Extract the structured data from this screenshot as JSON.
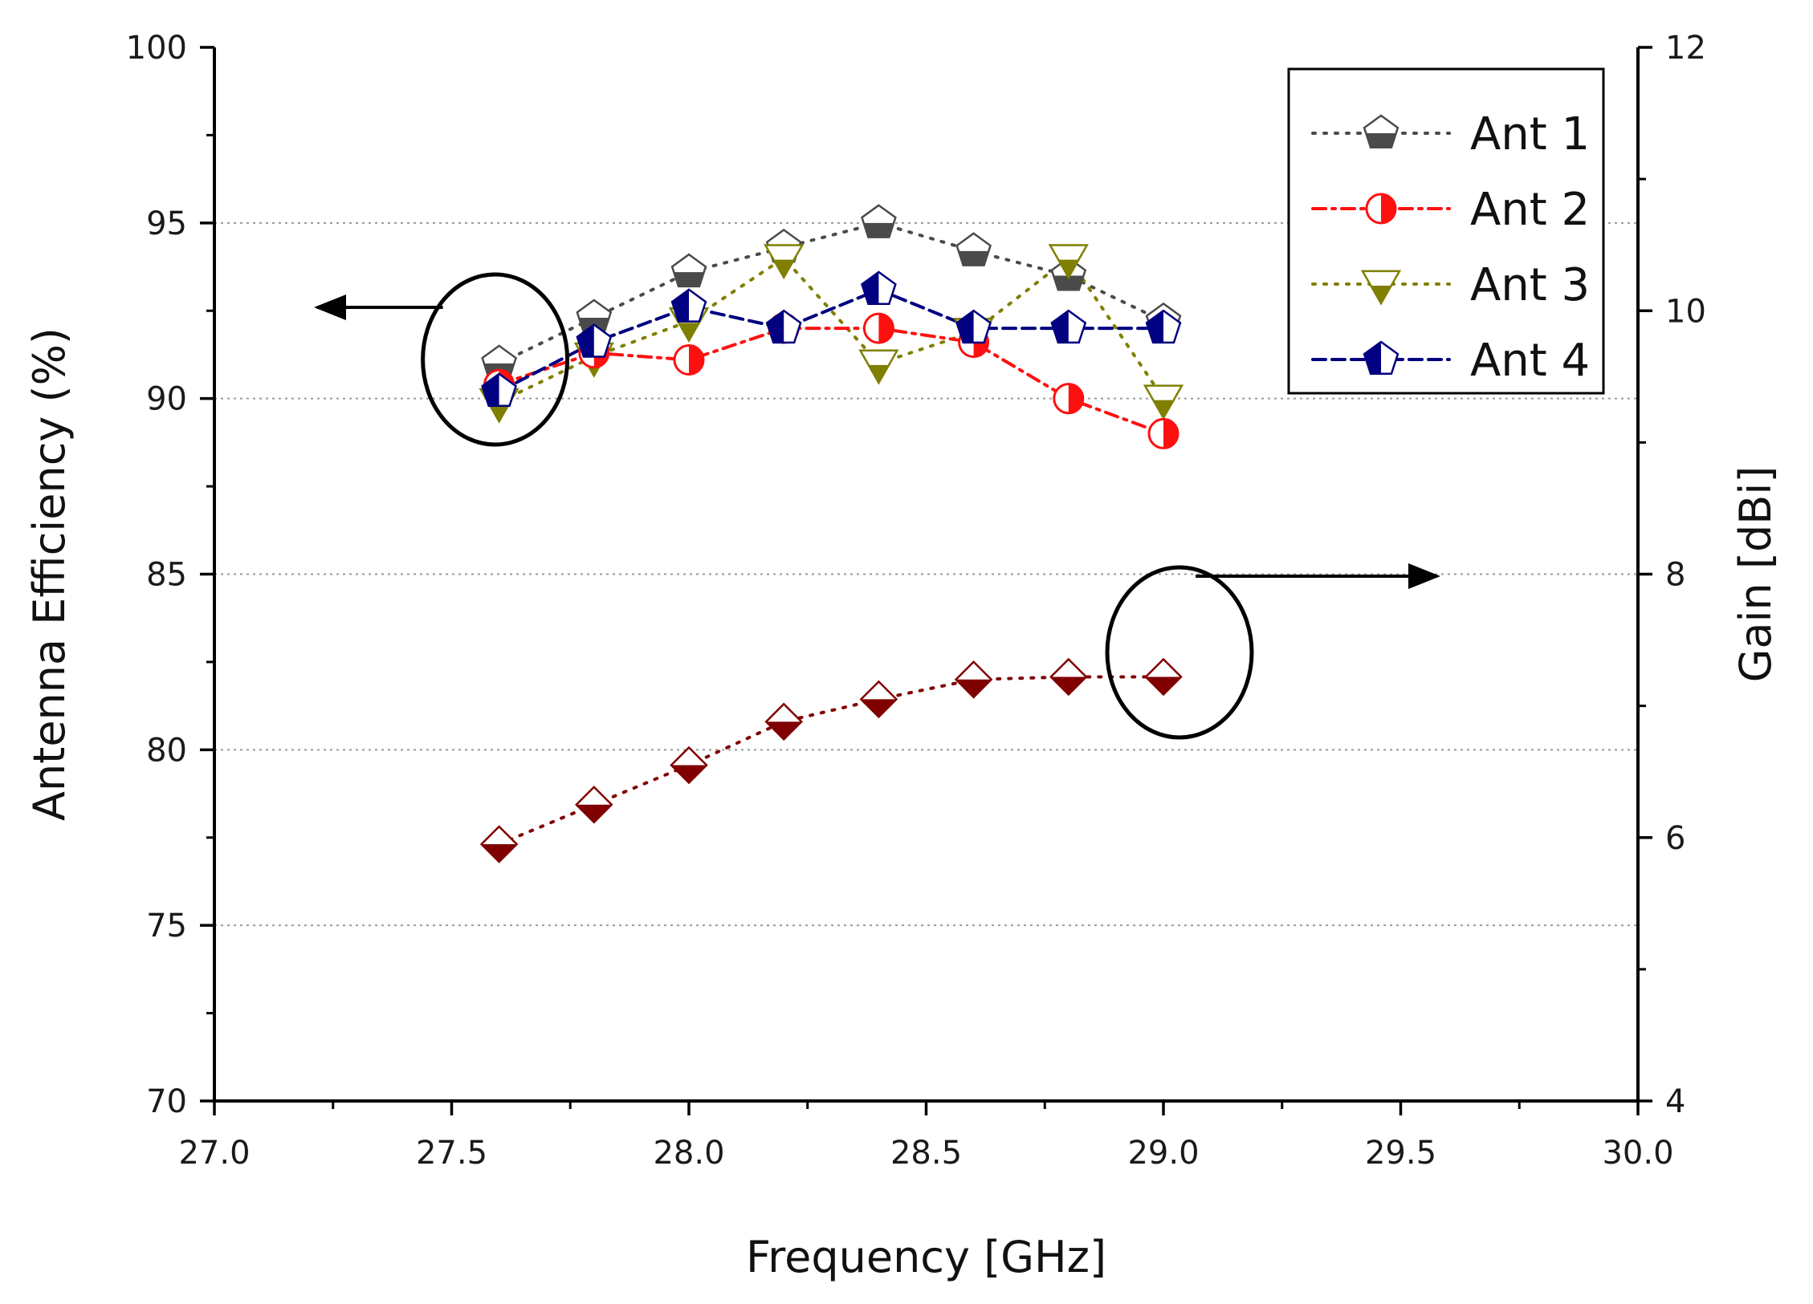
{
  "chart_data": {
    "type": "line",
    "title": "",
    "xlabel": "Frequency [GHz]",
    "ylabel": "Antenna Efficiency (%)",
    "y2label": "Gain [dBi]",
    "xlim": [
      27.0,
      30.0
    ],
    "ylim": [
      70,
      100
    ],
    "y2lim": [
      4,
      12
    ],
    "x_ticks": [
      "27.0",
      "27.5",
      "28.0",
      "28.5",
      "29.0",
      "29.5",
      "30.0"
    ],
    "y_ticks": [
      "70",
      "75",
      "80",
      "85",
      "90",
      "95",
      "100"
    ],
    "y2_ticks": [
      "4",
      "6",
      "8",
      "10",
      "12"
    ],
    "grid": "horizontal dotted at left-axis major ticks",
    "legend_position": "top-right",
    "x": [
      27.6,
      27.8,
      28.0,
      28.2,
      28.4,
      28.6,
      28.8,
      29.0
    ],
    "series": [
      {
        "name": "Ant 1",
        "axis": "left",
        "color": "#4a4a4a",
        "dash": "dotted",
        "marker": "pentagon-half",
        "values": [
          91.0,
          92.3,
          93.6,
          94.3,
          95.0,
          94.2,
          93.5,
          92.2
        ]
      },
      {
        "name": "Ant 2",
        "axis": "left",
        "color": "#ff1010",
        "dash": "dashdot",
        "marker": "circle-half",
        "values": [
          90.4,
          91.3,
          91.1,
          92.0,
          92.0,
          91.6,
          90.0,
          89.0
        ]
      },
      {
        "name": "Ant 3",
        "axis": "left",
        "color": "#7f7f00",
        "dash": "dotted",
        "marker": "triangle-down-half",
        "values": [
          89.9,
          91.2,
          92.2,
          94.0,
          91.0,
          91.9,
          94.0,
          90.0
        ]
      },
      {
        "name": "Ant 4",
        "axis": "left",
        "color": "#000080",
        "dash": "dashed",
        "marker": "pentagon-half",
        "values": [
          90.2,
          91.6,
          92.6,
          92.0,
          93.1,
          92.0,
          92.0,
          92.0
        ]
      },
      {
        "name": "Gain",
        "axis": "right",
        "color": "#800000",
        "dash": "dotted",
        "marker": "diamond-half",
        "values": [
          5.95,
          6.25,
          6.55,
          6.88,
          7.05,
          7.2,
          7.22,
          7.22
        ]
      }
    ],
    "annotations": [
      {
        "type": "ellipse-with-arrow",
        "points_to": "left axis",
        "around_x": 27.6
      },
      {
        "type": "ellipse-with-arrow",
        "points_to": "right axis",
        "around_x": 29.0
      }
    ]
  }
}
